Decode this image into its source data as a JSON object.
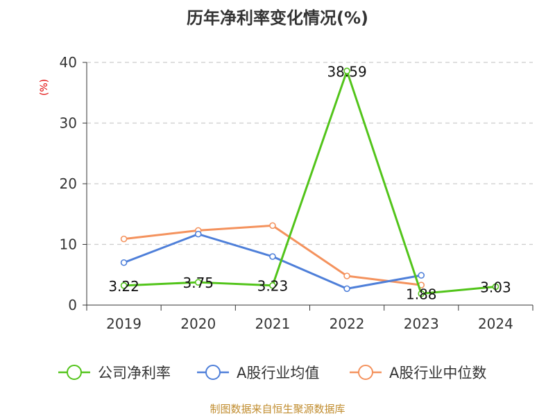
{
  "chart_data": {
    "type": "line",
    "title": "历年净利率变化情况(%)",
    "ylabel": "(%)",
    "xlabel": "",
    "categories": [
      "2019",
      "2020",
      "2021",
      "2022",
      "2023",
      "2024"
    ],
    "ylim": [
      0,
      40
    ],
    "yticks": [
      "0",
      "10",
      "20",
      "30",
      "40"
    ],
    "grid": "horizontal dashed",
    "legend_position": "bottom",
    "series": [
      {
        "name": "公司净利率",
        "color": "#52c41a",
        "values": [
          3.22,
          3.75,
          3.23,
          38.59,
          1.88,
          3.03
        ],
        "labels": [
          "3.22",
          "3.75",
          "3.23",
          "38.59",
          "1.88",
          "3.03"
        ]
      },
      {
        "name": "A股行业均值",
        "color": "#4e7fd9",
        "values": [
          7.0,
          11.7,
          8.0,
          2.7,
          4.9,
          null
        ]
      },
      {
        "name": "A股行业中位数",
        "color": "#f4925d",
        "values": [
          10.9,
          12.3,
          13.1,
          4.8,
          3.3,
          null
        ]
      }
    ]
  },
  "footer": {
    "source": "制图数据来自恒生聚源数据库",
    "source_color": "#c08c2e"
  },
  "ylabel_color": "#e00000"
}
